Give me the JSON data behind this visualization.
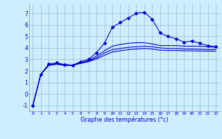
{
  "xlabel": "Graphe des températures (°c)",
  "background_color": "#cceeff",
  "line_color": "#0000cc",
  "grid_color": "#99bbcc",
  "xlim": [
    -0.5,
    23.5
  ],
  "ylim": [
    -1.5,
    7.8
  ],
  "yticks": [
    -1,
    0,
    1,
    2,
    3,
    4,
    5,
    6,
    7
  ],
  "xticks": [
    0,
    1,
    2,
    3,
    4,
    5,
    6,
    7,
    8,
    9,
    10,
    11,
    12,
    13,
    14,
    15,
    16,
    17,
    18,
    19,
    20,
    21,
    22,
    23
  ],
  "line1_x": [
    0,
    1,
    2,
    3,
    4,
    5,
    6,
    7,
    8,
    9,
    10,
    11,
    12,
    13,
    14,
    15,
    16,
    17,
    18,
    19,
    20,
    21,
    22,
    23
  ],
  "line1_y": [
    -1.0,
    1.7,
    2.6,
    2.7,
    2.55,
    2.5,
    2.8,
    3.0,
    3.6,
    4.4,
    5.8,
    6.2,
    6.6,
    7.0,
    7.1,
    6.5,
    5.3,
    5.0,
    4.8,
    4.5,
    4.6,
    4.4,
    4.2,
    4.1
  ],
  "line2_x": [
    0,
    1,
    2,
    3,
    4,
    5,
    6,
    7,
    8,
    9,
    10,
    11,
    12,
    13,
    14,
    15,
    16,
    17,
    18,
    19,
    20,
    21,
    22,
    23
  ],
  "line2_y": [
    -1.0,
    1.7,
    2.5,
    2.65,
    2.55,
    2.5,
    2.7,
    2.9,
    3.3,
    3.75,
    4.15,
    4.3,
    4.4,
    4.45,
    4.45,
    4.35,
    4.2,
    4.2,
    4.2,
    4.15,
    4.15,
    4.15,
    4.1,
    4.05
  ],
  "line3_x": [
    0,
    1,
    2,
    3,
    4,
    5,
    6,
    7,
    8,
    9,
    10,
    11,
    12,
    13,
    14,
    15,
    16,
    17,
    18,
    19,
    20,
    21,
    22,
    23
  ],
  "line3_y": [
    -1.0,
    1.7,
    2.5,
    2.6,
    2.5,
    2.5,
    2.7,
    2.85,
    3.15,
    3.55,
    3.85,
    3.95,
    4.05,
    4.1,
    4.15,
    4.1,
    4.0,
    3.95,
    3.95,
    3.9,
    3.9,
    3.88,
    3.85,
    3.85
  ],
  "line4_x": [
    0,
    1,
    2,
    3,
    4,
    5,
    6,
    7,
    8,
    9,
    10,
    11,
    12,
    13,
    14,
    15,
    16,
    17,
    18,
    19,
    20,
    21,
    22,
    23
  ],
  "line4_y": [
    -1.0,
    1.7,
    2.48,
    2.58,
    2.48,
    2.48,
    2.65,
    2.8,
    3.05,
    3.35,
    3.65,
    3.75,
    3.85,
    3.9,
    3.95,
    3.9,
    3.8,
    3.78,
    3.78,
    3.75,
    3.75,
    3.73,
    3.72,
    3.72
  ]
}
